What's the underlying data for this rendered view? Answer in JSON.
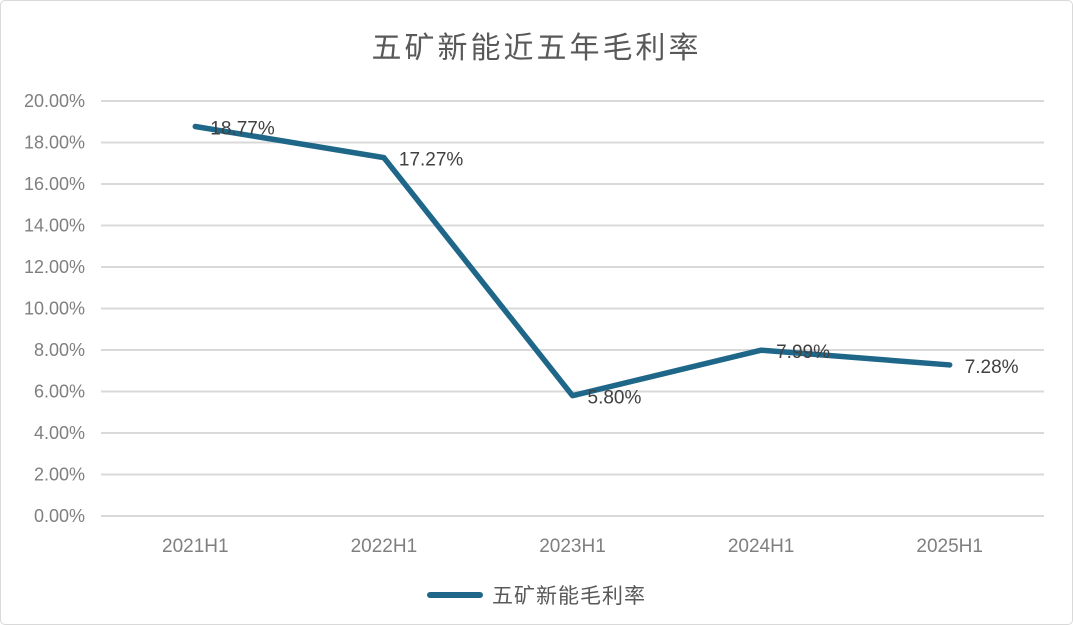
{
  "title": "五矿新能近五年毛利率",
  "legend": {
    "label": "五矿新能毛利率"
  },
  "colors": {
    "line": "#1e6789",
    "grid": "#d9d9d9",
    "axis_text": "#7f7f7f",
    "data_label": "#404040",
    "title_text": "#595959",
    "border": "#d9d9d9"
  },
  "chart_data": {
    "type": "line",
    "title": "五矿新能近五年毛利率",
    "categories": [
      "2021H1",
      "2022H1",
      "2023H1",
      "2024H1",
      "2025H1"
    ],
    "series": [
      {
        "name": "五矿新能毛利率",
        "values": [
          18.77,
          17.27,
          5.8,
          7.99,
          7.28
        ]
      }
    ],
    "data_labels": [
      "18.77%",
      "17.27%",
      "5.80%",
      "7.99%",
      "7.28%"
    ],
    "y_ticks": [
      "20.00%",
      "18.00%",
      "16.00%",
      "14.00%",
      "12.00%",
      "10.00%",
      "8.00%",
      "6.00%",
      "4.00%",
      "2.00%",
      "0.00%"
    ],
    "ylim": [
      0,
      20
    ],
    "y_tick_step": 2,
    "xlabel": "",
    "ylabel": "",
    "grid": true,
    "legend_position": "bottom"
  }
}
